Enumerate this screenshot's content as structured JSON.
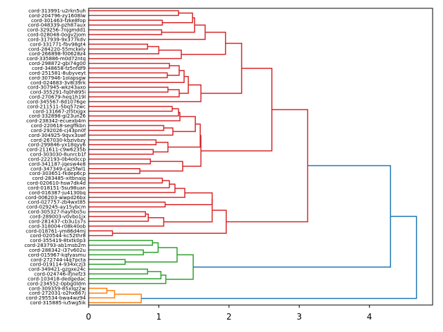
{
  "chart_data": {
    "type": "dendrogram",
    "orientation": "left",
    "title": "",
    "xlabel": "",
    "ylabel": "",
    "xlim": [
      0,
      4.9
    ],
    "xticks": [
      0,
      1,
      2,
      3,
      4
    ],
    "xtick_labels": [
      "0",
      "1",
      "2",
      "3",
      "4"
    ],
    "grid": false,
    "colors": {
      "c1": "#d62728",
      "c2": "#2ca02c",
      "c3": "#ff7f0e",
      "above": "#1f77b4"
    },
    "leaves": [
      "cord-313991-u2rkn5uh",
      "cord-204796-zy1608lw",
      "cord-301463-fzke8fop",
      "cord-048339-pzh87aux",
      "cord-329256-7njgmdd1",
      "cord-028048-0ogv2jom",
      "cord-317939-9x377kdv",
      "cord-331771-fbv98gt4",
      "cord-284220-55mckely",
      "cord-266898-f00628z4",
      "cord-335886-m0d72ntq",
      "cord-298872-gbi74g00",
      "cord-348658-fz5nfdf9",
      "cord-251581-8ubyveyt",
      "cord-307946-1olapsgw",
      "cord-024683-3v8l39rk",
      "cord-307945-wkz43axo",
      "cord-355291-fq0h895i",
      "cord-270679-heq1h19l",
      "cord-345567-8d1076ge",
      "cord-211511-5bq57zwc",
      "cord-131667-zl5txjgx",
      "cord-332898-gi23un26",
      "cord-238342-ecuexb4m",
      "cord-220618-segffkbn",
      "cord-292026-cj43pn0f",
      "cord-304925-9qvx3swf",
      "cord-267030-kbzivbzy",
      "cord-299846-yx18qyy6",
      "cord-211611-c9w6235b",
      "cord-303030-8unrcb1f",
      "cord-222193-0b4o0ccp",
      "cord-341187-jqesw4e8",
      "cord-347349-caz5fwl1",
      "cord-303651-fkdep6cp",
      "cord-283485-xitbnajq",
      "cord-020610-hsw7dk4d",
      "cord-018151-5su98uan",
      "cord-016387-ju4130bq",
      "cord-006203-wwpd26bx",
      "cord-027757-zb4wxt85",
      "cord-029245-ay15ybcm",
      "cord-305327-hayhbs5u",
      "cord-289003-v0vbo1jx",
      "cord-281437-cb3u1s7s",
      "cord-318004-r08k40ob",
      "cord-018761-ym86d4mj",
      "cord-020544-kc52thr8",
      "cord-355419-8txtk0p3",
      "cord-283793-ab1msb2m",
      "cord-288342-i37v602u",
      "cord-015967-kqfyasmu",
      "cord-272744-i4q7pcta",
      "cord-019114-934xczj3",
      "cord-349421-gzgxe24c",
      "cord-024746-ifjnefz3",
      "cord-103418-dedgedac",
      "cord-234552-0pbg0ldm",
      "cord-309359-85xlqz2w",
      "cord-272031-o2hx667j",
      "cord-295534-bwa4wz94",
      "cord-315885-iu5wg5ik"
    ],
    "links": [
      {
        "a": [
          0,
          1
        ],
        "h": 1.28,
        "c": "c1"
      },
      {
        "a": [
          2,
          3
        ],
        "h": 1.05,
        "c": "c1"
      },
      {
        "a": [
          "n0",
          "n1"
        ],
        "h": 1.48,
        "c": "c1"
      },
      {
        "a": [
          4,
          5
        ],
        "h": 1.04,
        "c": "c1"
      },
      {
        "a": [
          "n2",
          "n3"
        ],
        "h": 1.51,
        "c": "c1"
      },
      {
        "a": [
          "n4",
          6
        ],
        "h": 1.66,
        "c": "c1"
      },
      {
        "a": [
          7,
          8
        ],
        "h": 0.84,
        "c": "c1"
      },
      {
        "a": [
          "n6",
          9
        ],
        "h": 1.0,
        "c": "c1"
      },
      {
        "a": [
          "n7",
          10
        ],
        "h": 1.32,
        "c": "c1"
      },
      {
        "a": [
          "n5",
          "n8"
        ],
        "h": 1.95,
        "c": "c1"
      },
      {
        "a": [
          11,
          12
        ],
        "h": 1.15,
        "c": "c1"
      },
      {
        "a": [
          13,
          14
        ],
        "h": 1.12,
        "c": "c1"
      },
      {
        "a": [
          "n10",
          "n11"
        ],
        "h": 1.29,
        "c": "c1"
      },
      {
        "a": [
          "n12",
          15
        ],
        "h": 1.36,
        "c": "c1"
      },
      {
        "a": [
          16,
          17
        ],
        "h": 1.13,
        "c": "c1"
      },
      {
        "a": [
          "n14",
          18
        ],
        "h": 1.29,
        "c": "c1"
      },
      {
        "a": [
          "n13",
          "n15"
        ],
        "h": 1.42,
        "c": "c1"
      },
      {
        "a": [
          "n16",
          19
        ],
        "h": 1.6,
        "c": "c1"
      },
      {
        "a": [
          "n9",
          "n17"
        ],
        "h": 2.18,
        "c": "c1"
      },
      {
        "a": [
          20,
          21
        ],
        "h": 1.19,
        "c": "c1"
      },
      {
        "a": [
          "n19",
          22
        ],
        "h": 1.28,
        "c": "c1"
      },
      {
        "a": [
          "n20",
          23
        ],
        "h": 1.3,
        "c": "c1"
      },
      {
        "a": [
          24,
          25
        ],
        "h": 1.07,
        "c": "c1"
      },
      {
        "a": [
          "n22",
          26
        ],
        "h": 1.2,
        "c": "c1"
      },
      {
        "a": [
          "n21",
          "n23"
        ],
        "h": 1.52,
        "c": "c1"
      },
      {
        "a": [
          27,
          28
        ],
        "h": 0.96,
        "c": "c1"
      },
      {
        "a": [
          29,
          30
        ],
        "h": 0.92,
        "c": "c1"
      },
      {
        "a": [
          "n25",
          "n26"
        ],
        "h": 1.13,
        "c": "c1"
      },
      {
        "a": [
          "n24",
          "n27"
        ],
        "h": 1.59,
        "c": "c1"
      },
      {
        "a": [
          31,
          32
        ],
        "h": 0.88,
        "c": "c1"
      },
      {
        "a": [
          33,
          34
        ],
        "h": 0.73,
        "c": "c1"
      },
      {
        "a": [
          "n29",
          "n30"
        ],
        "h": 1.34,
        "c": "c1"
      },
      {
        "a": [
          "n28",
          "n31"
        ],
        "h": 1.6,
        "c": "c1"
      },
      {
        "a": [
          "n18",
          "n32"
        ],
        "h": 2.61,
        "c": "c1"
      },
      {
        "a": [
          35,
          36
        ],
        "h": 1.05,
        "c": "c1"
      },
      {
        "a": [
          "n34",
          37
        ],
        "h": 1.15,
        "c": "c1"
      },
      {
        "a": [
          "n35",
          38
        ],
        "h": 1.23,
        "c": "c1"
      },
      {
        "a": [
          "n36",
          39
        ],
        "h": 1.37,
        "c": "c1"
      },
      {
        "a": [
          40,
          41
        ],
        "h": 1.09,
        "c": "c1"
      },
      {
        "a": [
          "n37",
          "n38"
        ],
        "h": 1.76,
        "c": "c1"
      },
      {
        "a": [
          42,
          43
        ],
        "h": 0.81,
        "c": "c1"
      },
      {
        "a": [
          "n40",
          44
        ],
        "h": 0.85,
        "c": "c1"
      },
      {
        "a": [
          "n41",
          45
        ],
        "h": 1.07,
        "c": "c1"
      },
      {
        "a": [
          "n39",
          "n42"
        ],
        "h": 1.76,
        "c": "c1"
      },
      {
        "a": [
          46,
          47
        ],
        "h": 0.34,
        "c": "c1"
      },
      {
        "a": [
          "n43",
          "n44"
        ],
        "h": 1.96,
        "c": "c1"
      },
      {
        "a": [
          "n33",
          "n45"
        ],
        "h": 3.12,
        "c": "c1"
      },
      {
        "a": [
          48,
          49
        ],
        "h": 0.91,
        "c": "c2"
      },
      {
        "a": [
          50,
          51
        ],
        "h": 0.78,
        "c": "c2"
      },
      {
        "a": [
          "n47",
          "n48"
        ],
        "h": 0.99,
        "c": "c2"
      },
      {
        "a": [
          52,
          53
        ],
        "h": 0.52,
        "c": "c2"
      },
      {
        "a": [
          "n49",
          "n50"
        ],
        "h": 1.26,
        "c": "c2"
      },
      {
        "a": [
          54,
          55
        ],
        "h": 0.84,
        "c": "c2"
      },
      {
        "a": [
          "n52",
          56
        ],
        "h": 1.03,
        "c": "c2"
      },
      {
        "a": [
          "n53",
          57
        ],
        "h": 1.1,
        "c": "c2"
      },
      {
        "a": [
          "n51",
          "n54"
        ],
        "h": 1.49,
        "c": "c2"
      },
      {
        "a": [
          58,
          59
        ],
        "h": 0.26,
        "c": "c3"
      },
      {
        "a": [
          "n56",
          60
        ],
        "h": 0.37,
        "c": "c3"
      },
      {
        "a": [
          "n57",
          61
        ],
        "h": 0.75,
        "c": "c3"
      },
      {
        "a": [
          "n46",
          "n55"
        ],
        "h": 4.3,
        "c": "above"
      },
      {
        "a": [
          "n59",
          "n58"
        ],
        "h": 4.67,
        "c": "above"
      }
    ]
  }
}
